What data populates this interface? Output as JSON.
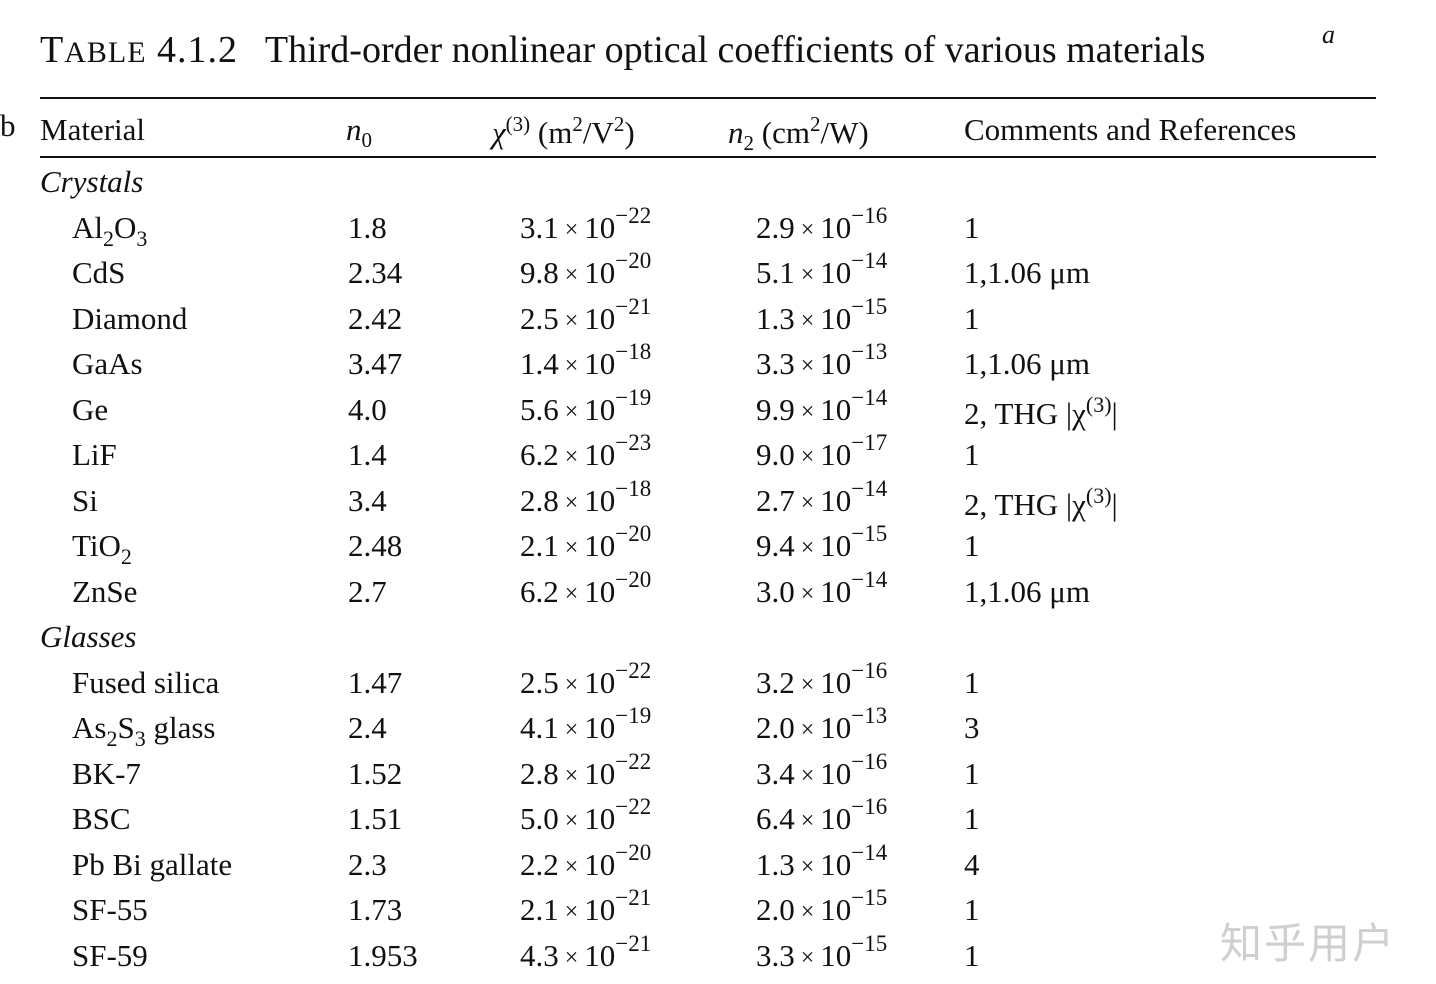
{
  "caption": {
    "label": "TABLE 4.1.2",
    "text": "Third-order nonlinear optical coefficients of various materials",
    "footnote": "a"
  },
  "headers": {
    "material": "Material",
    "n0": "n0",
    "chi3": "χ(3) (m2/V2)",
    "n2": "n2 (cm2/W)",
    "comments": "Comments and References",
    "comments_footnote": "b"
  },
  "sections": [
    {
      "title": "Crystals",
      "rows": [
        {
          "material": "Al2O3",
          "n0": "1.8",
          "chi_m": "3.1",
          "chi_e": "−22",
          "n2_m": "2.9",
          "n2_e": "−16",
          "comment": "1"
        },
        {
          "material": "CdS",
          "n0": "2.34",
          "chi_m": "9.8",
          "chi_e": "−20",
          "n2_m": "5.1",
          "n2_e": "−14",
          "comment": "1,1.06 μm"
        },
        {
          "material": "Diamond",
          "n0": "2.42",
          "chi_m": "2.5",
          "chi_e": "−21",
          "n2_m": "1.3",
          "n2_e": "−15",
          "comment": "1"
        },
        {
          "material": "GaAs",
          "n0": "3.47",
          "chi_m": "1.4",
          "chi_e": "−18",
          "n2_m": "3.3",
          "n2_e": "−13",
          "comment": "1,1.06 μm"
        },
        {
          "material": "Ge",
          "n0": "4.0",
          "chi_m": "5.6",
          "chi_e": "−19",
          "n2_m": "9.9",
          "n2_e": "−14",
          "comment": "2, THG |χ(3)|"
        },
        {
          "material": "LiF",
          "n0": "1.4",
          "chi_m": "6.2",
          "chi_e": "−23",
          "n2_m": "9.0",
          "n2_e": "−17",
          "comment": "1"
        },
        {
          "material": "Si",
          "n0": "3.4",
          "chi_m": "2.8",
          "chi_e": "−18",
          "n2_m": "2.7",
          "n2_e": "−14",
          "comment": "2, THG |χ(3)|"
        },
        {
          "material": "TiO2",
          "n0": "2.48",
          "chi_m": "2.1",
          "chi_e": "−20",
          "n2_m": "9.4",
          "n2_e": "−15",
          "comment": "1"
        },
        {
          "material": "ZnSe",
          "n0": "2.7",
          "chi_m": "6.2",
          "chi_e": "−20",
          "n2_m": "3.0",
          "n2_e": "−14",
          "comment": "1,1.06 μm"
        }
      ]
    },
    {
      "title": "Glasses",
      "rows": [
        {
          "material": "Fused silica",
          "n0": "1.47",
          "chi_m": "2.5",
          "chi_e": "−22",
          "n2_m": "3.2",
          "n2_e": "−16",
          "comment": "1"
        },
        {
          "material": "As2S3 glass",
          "n0": "2.4",
          "chi_m": "4.1",
          "chi_e": "−19",
          "n2_m": "2.0",
          "n2_e": "−13",
          "comment": "3"
        },
        {
          "material": "BK-7",
          "n0": "1.52",
          "chi_m": "2.8",
          "chi_e": "−22",
          "n2_m": "3.4",
          "n2_e": "−16",
          "comment": "1"
        },
        {
          "material": "BSC",
          "n0": "1.51",
          "chi_m": "5.0",
          "chi_e": "−22",
          "n2_m": "6.4",
          "n2_e": "−16",
          "comment": "1"
        },
        {
          "material": "Pb Bi gallate",
          "n0": "2.3",
          "chi_m": "2.2",
          "chi_e": "−20",
          "n2_m": "1.3",
          "n2_e": "−14",
          "comment": "4"
        },
        {
          "material": "SF-55",
          "n0": "1.73",
          "chi_m": "2.1",
          "chi_e": "−21",
          "n2_m": "2.0",
          "n2_e": "−15",
          "comment": "1"
        },
        {
          "material": "SF-59",
          "n0": "1.953",
          "chi_m": "4.3",
          "chi_e": "−21",
          "n2_m": "3.3",
          "n2_e": "−15",
          "comment": "1"
        }
      ]
    }
  ],
  "watermark": "知乎用户"
}
